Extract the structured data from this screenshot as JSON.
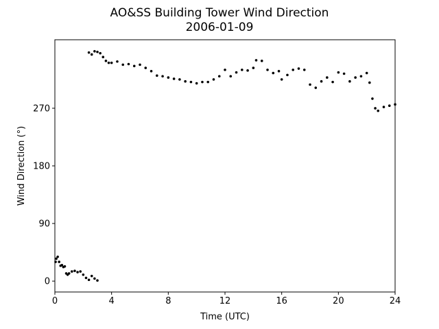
{
  "chart_data": {
    "type": "scatter",
    "title": [
      "AO&SS Building Tower Wind Direction",
      "2006-01-09"
    ],
    "x_label": "Time (UTC)",
    "y_label": "Wind Direction (°)",
    "color": "#000000",
    "xlim": [
      0,
      24
    ],
    "xticks": [
      0,
      4,
      8,
      12,
      16,
      20,
      24
    ],
    "ylim": [
      -17,
      377
    ],
    "yticks": [
      0,
      90,
      180,
      270
    ],
    "x": [
      0.05,
      0.1,
      0.2,
      0.3,
      0.4,
      0.5,
      0.6,
      0.7,
      0.8,
      0.9,
      1.0,
      1.2,
      1.4,
      1.6,
      1.8,
      2.0,
      2.2,
      2.4,
      2.6,
      2.8,
      3.0,
      2.4,
      2.6,
      2.8,
      3.0,
      3.2,
      3.4,
      3.6,
      3.8,
      4.0,
      4.4,
      4.8,
      5.2,
      5.6,
      6.0,
      6.4,
      6.8,
      7.2,
      7.6,
      8.0,
      8.4,
      8.8,
      9.2,
      9.6,
      10.0,
      10.4,
      10.8,
      11.2,
      11.6,
      12.0,
      12.4,
      12.8,
      13.2,
      13.6,
      14.0,
      14.2,
      14.6,
      15.0,
      15.4,
      15.8,
      16.0,
      16.4,
      16.8,
      17.2,
      17.6,
      18.0,
      18.4,
      18.8,
      19.2,
      19.6,
      20.0,
      20.4,
      20.8,
      21.2,
      21.6,
      22.0,
      22.2,
      22.4,
      22.6,
      22.8,
      23.2,
      23.6,
      24.0
    ],
    "y": [
      30,
      35,
      38,
      30,
      24,
      25,
      22,
      23,
      12,
      10,
      12,
      15,
      16,
      14,
      15,
      10,
      5,
      2,
      8,
      4,
      1,
      357,
      354,
      359,
      358,
      356,
      350,
      344,
      341,
      341,
      343,
      338,
      339,
      336,
      338,
      333,
      328,
      321,
      320,
      318,
      316,
      315,
      312,
      311,
      309,
      311,
      311,
      315,
      320,
      330,
      320,
      326,
      330,
      329,
      333,
      345,
      344,
      330,
      325,
      328,
      315,
      322,
      330,
      332,
      330,
      307,
      302,
      312,
      318,
      311,
      326,
      324,
      312,
      318,
      320,
      325,
      310,
      285,
      270,
      266,
      272,
      274,
      276
    ]
  }
}
